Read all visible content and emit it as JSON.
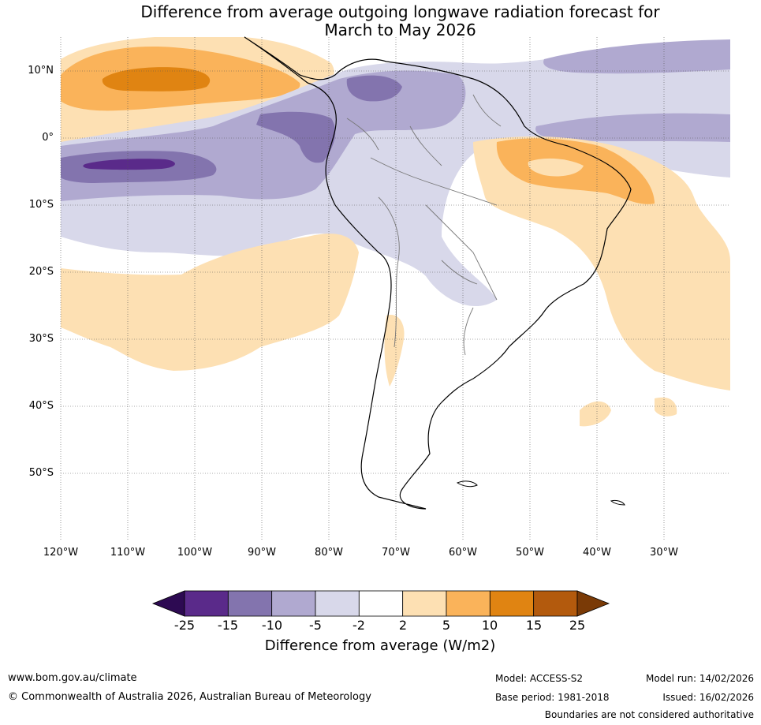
{
  "title": {
    "line1": "Difference from average outgoing longwave radiation forecast for",
    "line2": "March to May 2026"
  },
  "map": {
    "lat_labels": [
      "10°N",
      "0°",
      "10°S",
      "20°S",
      "30°S",
      "40°S",
      "50°S"
    ],
    "lon_labels": [
      "120°W",
      "110°W",
      "100°W",
      "90°W",
      "80°W",
      "70°W",
      "60°W",
      "50°W",
      "40°W",
      "30°W"
    ]
  },
  "colorbar": {
    "ticks": [
      "-25",
      "-15",
      "-10",
      "-5",
      "-2",
      "2",
      "5",
      "10",
      "15",
      "25"
    ],
    "label": "Difference from average (W/m2)",
    "colors": [
      "#2d0a52",
      "#5a2a8a",
      "#8374ae",
      "#b0a9d0",
      "#d8d8ea",
      "#ffffff",
      "#fde0b3",
      "#fab35a",
      "#e08412",
      "#b35a0d",
      "#7a3a06"
    ]
  },
  "footer": {
    "website": "www.bom.gov.au/climate",
    "copyright": "© Commonwealth of Australia 2026, Australian Bureau of Meteorology",
    "model": "Model: ACCESS-S2",
    "base_period": "Base period: 1981-2018",
    "model_run": "Model run: 14/02/2026",
    "issued": "Issued: 16/02/2026",
    "disclaimer": "Boundaries are not considered authoritative"
  }
}
